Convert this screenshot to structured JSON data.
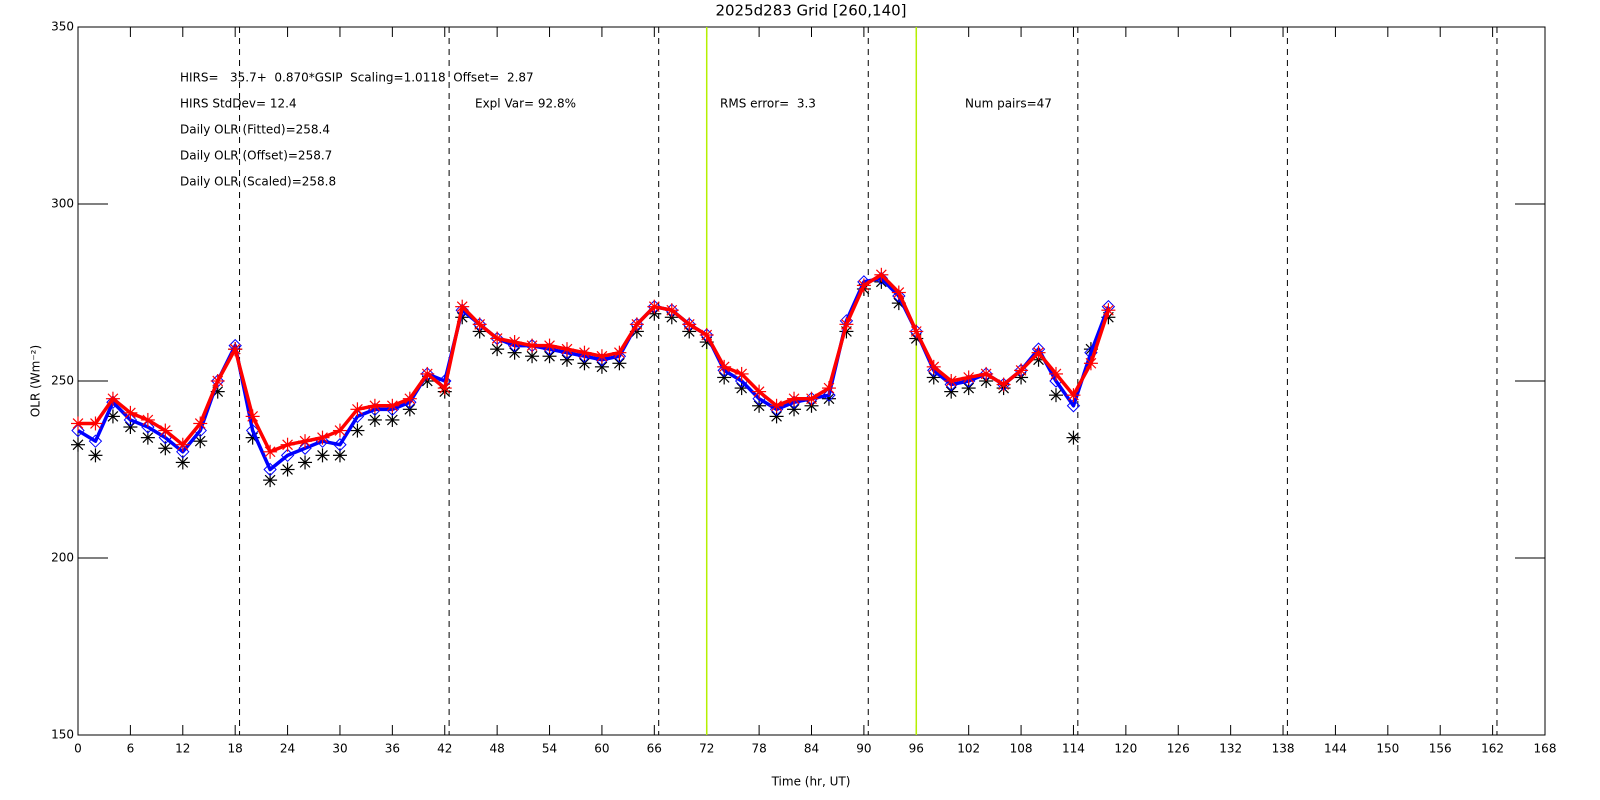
{
  "chart_data": {
    "type": "line",
    "title": "2025d283 Grid [260,140]",
    "x_label": "Time (hr, UT)",
    "y_label": "OLR (Wm⁻²)",
    "annotations": [
      "HIRS=   35.7+  0.870*GSIP  Scaling=1.0118  Offset=  2.87",
      "HIRS StdDev= 12.4",
      "Expl Var= 92.8%",
      "RMS error=  3.3",
      "Num pairs=47",
      "Daily OLR (Fitted)=258.4",
      "Daily OLR (Offset)=258.7",
      "Daily OLR (Scaled)=258.8"
    ],
    "x": [
      0,
      2,
      4,
      6,
      8,
      10,
      12,
      14,
      16,
      18,
      20,
      22,
      24,
      26,
      28,
      30,
      32,
      34,
      36,
      38,
      40,
      42,
      44,
      46,
      48,
      50,
      52,
      54,
      56,
      58,
      60,
      62,
      64,
      66,
      68,
      70,
      72,
      74,
      76,
      78,
      80,
      82,
      84,
      86,
      88,
      90,
      92,
      94,
      96,
      98,
      100,
      102,
      104,
      106,
      108,
      110,
      112,
      114,
      116,
      118
    ],
    "series": [
      {
        "color": "#000000",
        "marker": "asterisk",
        "line": false,
        "values": [
          232,
          229,
          240,
          237,
          234,
          231,
          227,
          233,
          247,
          259,
          234,
          222,
          225,
          227,
          229,
          229,
          236,
          239,
          239,
          242,
          250,
          247,
          268,
          264,
          259,
          258,
          257,
          257,
          256,
          255,
          254,
          255,
          264,
          269,
          268,
          264,
          261,
          251,
          248,
          243,
          240,
          242,
          243,
          245,
          264,
          276,
          278,
          272,
          262,
          251,
          247,
          248,
          250,
          248,
          251,
          256,
          246,
          234,
          259,
          268
        ]
      },
      {
        "color": "#0000ff",
        "marker": "diamond",
        "line": true,
        "values": [
          236,
          233,
          244,
          239,
          237,
          234,
          230,
          236,
          250,
          260,
          236,
          225,
          229,
          231,
          233,
          232,
          240,
          242,
          242,
          244,
          252,
          250,
          270,
          266,
          262,
          260,
          260,
          259,
          258,
          257,
          256,
          257,
          266,
          271,
          270,
          266,
          263,
          253,
          250,
          245,
          242,
          244,
          245,
          246,
          267,
          278,
          279,
          274,
          264,
          253,
          249,
          250,
          252,
          249,
          253,
          259,
          250,
          243,
          258,
          271
        ]
      },
      {
        "color": "#ff0000",
        "marker": "asterisk",
        "line": true,
        "values": [
          238,
          238,
          245,
          241,
          239,
          236,
          232,
          238,
          250,
          259,
          240,
          230,
          232,
          233,
          234,
          236,
          242,
          243,
          243,
          245,
          252,
          248,
          271,
          266,
          262,
          261,
          260,
          260,
          259,
          258,
          257,
          258,
          266,
          271,
          270,
          266,
          263,
          254,
          252,
          247,
          243,
          245,
          245,
          248,
          266,
          277,
          280,
          275,
          264,
          254,
          250,
          251,
          252,
          249,
          253,
          258,
          252,
          246,
          255,
          270
        ]
      }
    ],
    "dashed_vlines": [
      18.5,
      42.5,
      66.5,
      90.5,
      114.5,
      138.5,
      162.5
    ],
    "yellow_vlines": [
      72,
      96
    ],
    "xlim": [
      0,
      168
    ],
    "ylim": [
      150,
      350
    ],
    "xticks": [
      0,
      6,
      12,
      18,
      24,
      30,
      36,
      42,
      48,
      54,
      60,
      66,
      72,
      78,
      84,
      90,
      96,
      102,
      108,
      114,
      120,
      126,
      132,
      138,
      144,
      150,
      156,
      162,
      168
    ],
    "yticks": [
      150,
      200,
      250,
      300,
      350
    ]
  }
}
